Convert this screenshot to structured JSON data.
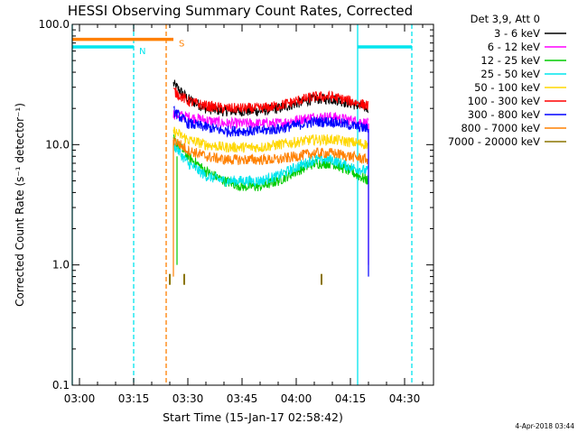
{
  "chart_data": {
    "type": "line",
    "title": "HESSI Observing Summary Count Rates, Corrected",
    "ylabel": "Corrected Count Rate (s⁻¹ detector⁻¹)",
    "xlabel": "Start Time (15-Jan-17 02:58:42)",
    "yscale": "log",
    "ylim": [
      0.1,
      100.0
    ],
    "y_ticks": [
      "100.0",
      "10.0",
      "1.0",
      "0.1"
    ],
    "xlim": [
      "02:58",
      "04:38"
    ],
    "x_ticks": [
      "03:00",
      "03:15",
      "03:30",
      "03:45",
      "04:00",
      "04:15",
      "04:30"
    ],
    "legend_title": "Det 3,9, Att 0",
    "legend_position": "right",
    "footer": "4-Apr-2018 03:44",
    "flags": [
      {
        "label": "N",
        "color": "#00e5ee",
        "segments": [
          [
            "02:58",
            "03:15"
          ],
          [
            "04:17",
            "04:32"
          ]
        ],
        "level": 65
      },
      {
        "label": "S",
        "color": "#ff8000",
        "segments": [
          [
            "02:58",
            "03:26"
          ]
        ],
        "level": 75
      }
    ],
    "vlines": [
      {
        "time": "02:58",
        "color": "#00e5ee",
        "style": "solid"
      },
      {
        "time": "03:15",
        "color": "#00e5ee",
        "style": "dashed"
      },
      {
        "time": "03:24",
        "color": "#ff8000",
        "style": "dashed"
      },
      {
        "time": "04:17",
        "color": "#00e5ee",
        "style": "solid"
      },
      {
        "time": "04:32",
        "color": "#00e5ee",
        "style": "dashed"
      }
    ],
    "x": [
      "03:26",
      "03:30",
      "03:35",
      "03:40",
      "03:45",
      "03:50",
      "03:55",
      "04:00",
      "04:05",
      "04:10",
      "04:15",
      "04:20"
    ],
    "series": [
      {
        "name": "3 - 6 keV",
        "color": "#000000",
        "values": [
          32,
          24,
          20,
          19,
          19,
          19,
          20,
          22,
          24,
          24,
          22,
          20
        ]
      },
      {
        "name": "6 - 12 keV",
        "color": "#ff00ff",
        "values": [
          18,
          17,
          16,
          15,
          15,
          15,
          15,
          16,
          17,
          17,
          16,
          15
        ]
      },
      {
        "name": "12 - 25 keV",
        "color": "#00cc00",
        "values": [
          11,
          8,
          6,
          5,
          4.5,
          4.5,
          5,
          6,
          7,
          7,
          6,
          5
        ]
      },
      {
        "name": "25 - 50 keV",
        "color": "#00e5ee",
        "values": [
          10,
          7,
          5.5,
          5,
          5,
          5,
          5.5,
          6.5,
          7.5,
          7.5,
          6.5,
          6
        ]
      },
      {
        "name": "50 - 100 keV",
        "color": "#ffd700",
        "values": [
          13,
          11,
          10,
          9.5,
          9.5,
          9.5,
          10,
          10.5,
          11,
          11,
          10.5,
          10
        ]
      },
      {
        "name": "100 - 300 keV",
        "color": "#ff0000",
        "values": [
          28,
          23,
          21,
          20,
          20,
          20,
          21,
          23,
          25,
          25,
          23,
          21
        ]
      },
      {
        "name": "300 - 800 keV",
        "color": "#0000ff",
        "values": [
          19,
          15,
          14,
          13,
          13,
          13,
          13.5,
          14.5,
          15.5,
          15.5,
          14.5,
          13.5
        ]
      },
      {
        "name": "800 - 7000 keV",
        "color": "#ff8000",
        "values": [
          11,
          9,
          8,
          7.5,
          7.5,
          7.5,
          7.5,
          8,
          8.5,
          8.5,
          8,
          7.5
        ]
      },
      {
        "name": "7000 - 20000 keV",
        "color": "#8b7500",
        "values": [
          null,
          null,
          null,
          null,
          null,
          null,
          null,
          null,
          null,
          null,
          null,
          null
        ]
      }
    ],
    "sparse_points": [
      {
        "series": "7000 - 20000 keV",
        "x": "03:25",
        "y": 0.72
      },
      {
        "series": "7000 - 20000 keV",
        "x": "03:29",
        "y": 0.72
      },
      {
        "series": "7000 - 20000 keV",
        "x": "04:07",
        "y": 0.72
      }
    ],
    "drops": [
      {
        "series": "800 - 7000 keV",
        "x": "03:26",
        "y": 0.8
      },
      {
        "series": "12 - 25 keV",
        "x": "03:27",
        "y": 1.0
      },
      {
        "series": "6 - 12 keV",
        "x": "04:20",
        "y": 1.0
      },
      {
        "series": "300 - 800 keV",
        "x": "04:20",
        "y": 0.8
      }
    ]
  }
}
